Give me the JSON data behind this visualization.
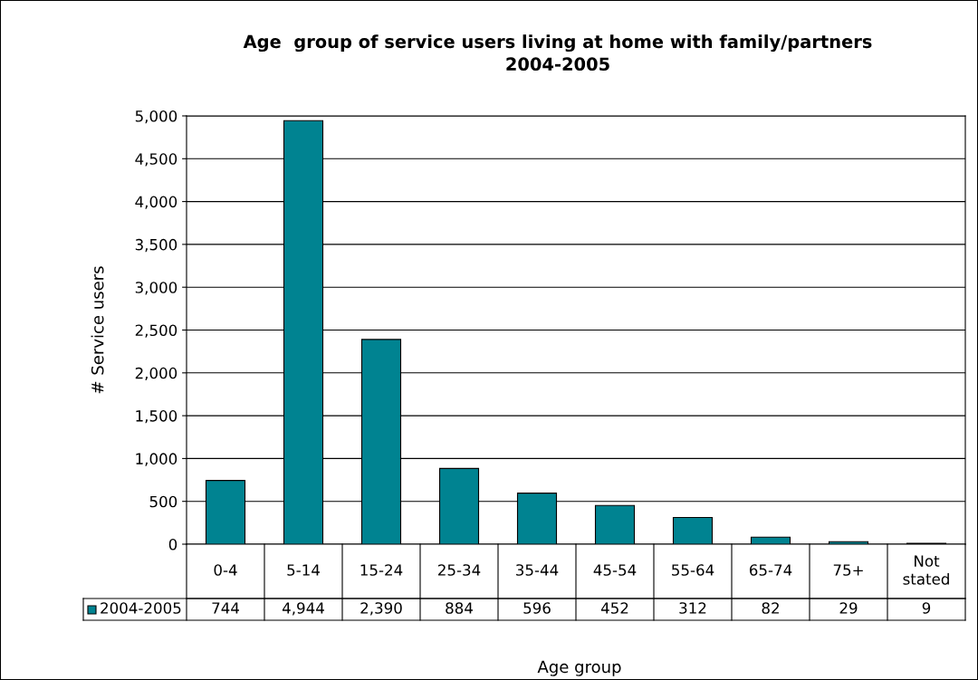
{
  "chart_data": {
    "type": "bar",
    "title": "Age  group of service users living at home with family/partners\n2004-2005",
    "xlabel": "Age group",
    "ylabel": "# Service users",
    "categories": [
      "0-4",
      "5-14",
      "15-24",
      "25-34",
      "35-44",
      "45-54",
      "55-64",
      "65-74",
      "75+",
      "Not\nstated"
    ],
    "series": [
      {
        "name": "2004-2005",
        "color": "#008391",
        "values": [
          744,
          4944,
          2390,
          884,
          596,
          452,
          312,
          82,
          29,
          9
        ],
        "value_labels": [
          "744",
          "4,944",
          "2,390",
          "884",
          "596",
          "452",
          "312",
          "82",
          "29",
          "9"
        ]
      }
    ],
    "ylim": [
      0,
      5000
    ],
    "yticks": [
      0,
      {
        "value": 500,
        "label": "500"
      },
      {
        "value": 1000,
        "label": "1,000"
      },
      {
        "value": 1500,
        "label": "1,500"
      },
      {
        "value": 2000,
        "label": "2,000"
      },
      {
        "value": 2500,
        "label": "2,500"
      },
      {
        "value": 3000,
        "label": "3,000"
      },
      {
        "value": 3500,
        "label": "3,500"
      },
      {
        "value": 4000,
        "label": "4,000"
      },
      {
        "value": 4500,
        "label": "4,500"
      },
      {
        "value": 5000,
        "label": "5,000"
      }
    ],
    "grid": "y",
    "legend": "bottom"
  }
}
